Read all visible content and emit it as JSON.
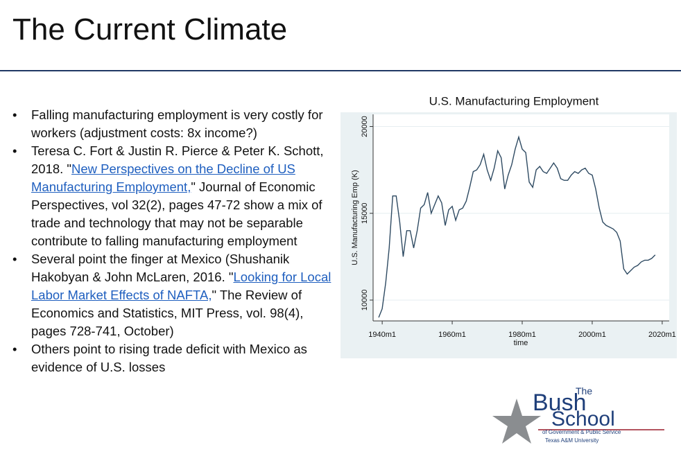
{
  "header": {
    "title": "The Current Climate"
  },
  "bullets": [
    [
      "Falling manufacturing employment is very costly for workers (adjustment costs: 8x income?)"
    ],
    [
      "Teresa C. Fort & Justin R. Pierce & Peter K. Schott, 2018. \"",
      {
        "link": "New Perspectives on the Decline of US Manufacturing Employment,"
      },
      "\" Journal of Economic Perspectives, vol 32(2), pages 47-72 show a mix of trade and technology that may not be separable contribute to falling manufacturing employment"
    ],
    [
      "Several point the finger at Mexico (Shushanik Hakobyan & John McLaren, 2016. \"",
      {
        "link": "Looking for Local Labor Market Effects of NAFTA,"
      },
      "\" The Review of Economics and Statistics, MIT Press, vol. 98(4), pages 728-741, October)"
    ],
    [
      "Others point to rising trade deficit with Mexico as evidence of U.S. losses"
    ]
  ],
  "chart_data": {
    "type": "line",
    "title": "U.S. Manufacturing Employment",
    "x_label": "time",
    "y_label": "U.S. Manufacturing Emp (K)",
    "color": "#2e4a62",
    "grid": true,
    "x": [
      1939,
      1940,
      1941,
      1942,
      1943,
      1944,
      1945,
      1946,
      1947,
      1948,
      1949,
      1950,
      1951,
      1952,
      1953,
      1954,
      1955,
      1956,
      1957,
      1958,
      1959,
      1960,
      1961,
      1962,
      1963,
      1964,
      1965,
      1966,
      1967,
      1968,
      1969,
      1970,
      1971,
      1972,
      1973,
      1974,
      1975,
      1976,
      1977,
      1978,
      1979,
      1980,
      1981,
      1982,
      1983,
      1984,
      1985,
      1986,
      1987,
      1988,
      1989,
      1990,
      1991,
      1992,
      1993,
      1994,
      1995,
      1996,
      1997,
      1998,
      1999,
      2000,
      2001,
      2002,
      2003,
      2004,
      2005,
      2006,
      2007,
      2008,
      2009,
      2010,
      2011,
      2012,
      2013,
      2014,
      2015,
      2016,
      2017,
      2018
    ],
    "values": [
      9000,
      9500,
      11000,
      13000,
      16000,
      16000,
      14500,
      12500,
      14000,
      14000,
      13000,
      14000,
      15300,
      15500,
      16200,
      15000,
      15500,
      16000,
      15600,
      14300,
      15200,
      15400,
      14600,
      15200,
      15300,
      15700,
      16500,
      17400,
      17500,
      17800,
      18400,
      17500,
      16900,
      17600,
      18600,
      18200,
      16400,
      17200,
      17800,
      18700,
      19400,
      18700,
      18500,
      16800,
      16500,
      17500,
      17700,
      17400,
      17300,
      17600,
      17900,
      17600,
      17000,
      16900,
      16900,
      17200,
      17400,
      17300,
      17500,
      17600,
      17300,
      17200,
      16400,
      15300,
      14500,
      14300,
      14200,
      14100,
      13900,
      13400,
      11800,
      11500,
      11700,
      11900,
      12000,
      12200,
      12300,
      12300,
      12400,
      12600
    ],
    "xlim": [
      1937.4,
      2022
    ],
    "ylim": [
      8800,
      20700
    ],
    "xticks": [
      {
        "value": 1940,
        "label": "1940m1"
      },
      {
        "value": 1960,
        "label": "1960m1"
      },
      {
        "value": 1980,
        "label": "1980m1"
      },
      {
        "value": 2000,
        "label": "2000m1"
      },
      {
        "value": 2020,
        "label": "2020m1"
      }
    ],
    "yticks": [
      10000,
      15000,
      20000
    ]
  },
  "logo": {
    "the": "The",
    "bush": "Bush",
    "school": "School",
    "line1": "of Government & Public Service",
    "line2": "Texas A&M University"
  }
}
